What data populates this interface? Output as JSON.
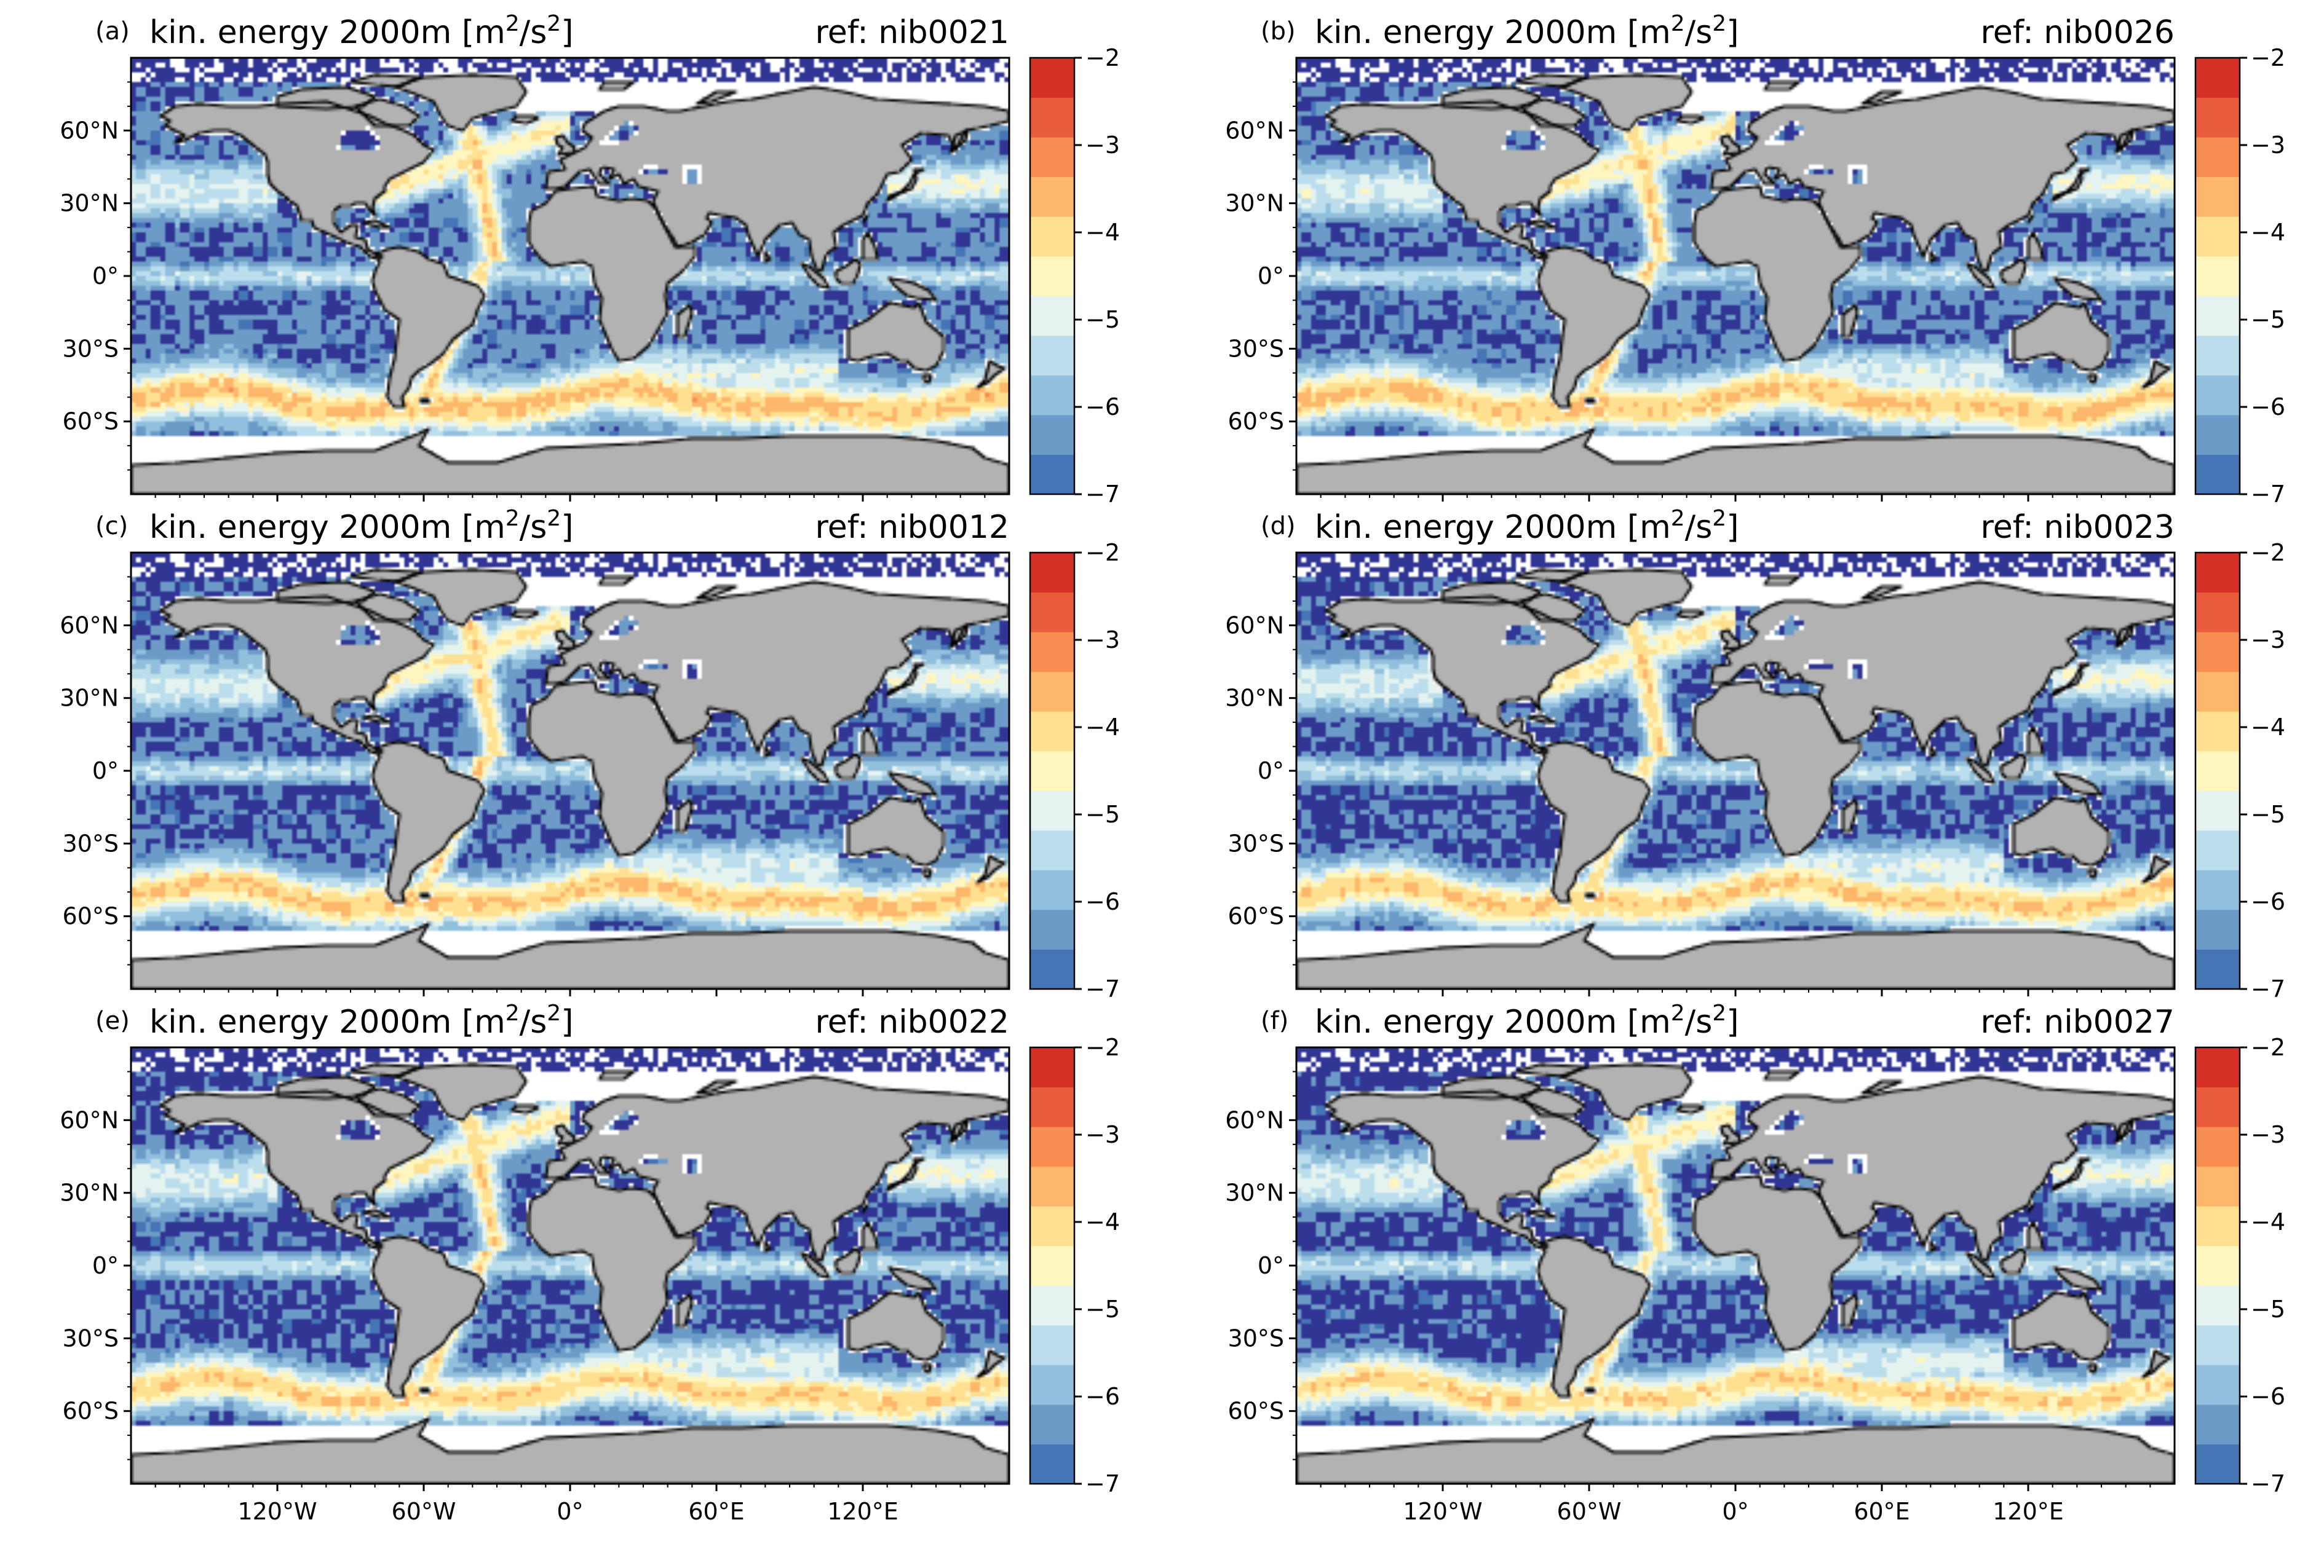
{
  "colors": {
    "land": "#b2b2b2",
    "coast": "#000000",
    "missing": "#ffffff",
    "colorbar": [
      "#4575b4",
      "#6d9bc8",
      "#92bfdc",
      "#bcdeec",
      "#e4f3f0",
      "#fff5bf",
      "#fee090",
      "#fdb76b",
      "#f88d52",
      "#ea5d3c",
      "#d73027"
    ]
  },
  "colorbar": {
    "min": -7,
    "max": -2,
    "tick_labels": [
      "-7",
      "-6",
      "-5",
      "-4",
      "-3",
      "-2"
    ]
  },
  "axis_labels": {
    "lat": [
      "60°N",
      "30°N",
      "0°",
      "30°S",
      "60°S"
    ],
    "lon": [
      "120°W",
      "60°W",
      "0°",
      "60°E",
      "120°E"
    ]
  },
  "panels": [
    {
      "letter": "(a)",
      "title_main": "kin. energy 2000m [m",
      "title_sup1": "2",
      "title_mid": "/s",
      "title_sup2": "2",
      "title_end": "]",
      "ref": "ref: nib0021",
      "variant": 0
    },
    {
      "letter": "(b)",
      "title_main": "kin. energy 2000m [m",
      "title_sup1": "2",
      "title_mid": "/s",
      "title_sup2": "2",
      "title_end": "]",
      "ref": "ref: nib0026",
      "variant": 1
    },
    {
      "letter": "(c)",
      "title_main": "kin. energy 2000m [m",
      "title_sup1": "2",
      "title_mid": "/s",
      "title_sup2": "2",
      "title_end": "]",
      "ref": "ref: nib0012",
      "variant": 2
    },
    {
      "letter": "(d)",
      "title_main": "kin. energy 2000m [m",
      "title_sup1": "2",
      "title_mid": "/s",
      "title_sup2": "2",
      "title_end": "]",
      "ref": "ref: nib0023",
      "variant": 3
    },
    {
      "letter": "(e)",
      "title_main": "kin. energy 2000m [m",
      "title_sup1": "2",
      "title_mid": "/s",
      "title_sup2": "2",
      "title_end": "]",
      "ref": "ref: nib0022",
      "variant": 4
    },
    {
      "letter": "(f)",
      "title_main": "kin. energy 2000m [m",
      "title_sup1": "2",
      "title_mid": "/s",
      "title_sup2": "2",
      "title_end": "]",
      "ref": "ref: nib0027",
      "variant": 5
    }
  ]
}
